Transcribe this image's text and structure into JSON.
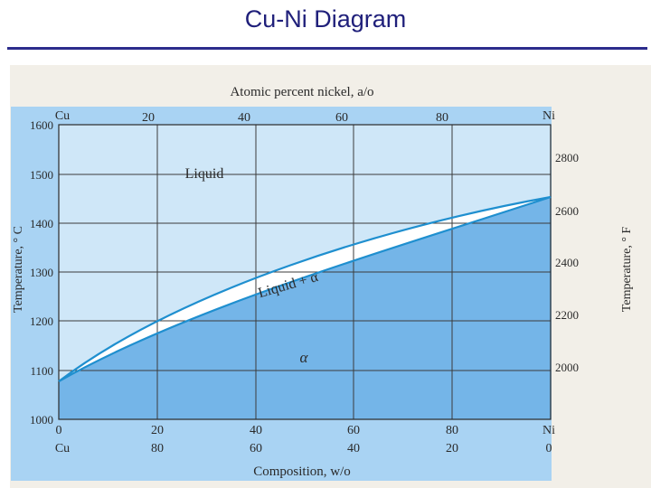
{
  "slide": {
    "title": "Cu-Ni Diagram"
  },
  "colors": {
    "title": "#1f1f7a",
    "accent_rule": "#2c2c8c",
    "liquid_region": "#cfe7f8",
    "alpha_region": "#74b5e8",
    "two_phase_region": "#ffffff",
    "outer_band": "#a9d3f3",
    "grid": "#3b3b3b",
    "boundary": "#1f8fcf"
  },
  "diagram": {
    "top_axis_title": "Atomic percent nickel, a/o",
    "top_left_label": "Cu",
    "top_right_label": "Ni",
    "top_ticks": [
      "20",
      "40",
      "60",
      "80"
    ],
    "left_axis_title": "Temperature, ° C",
    "left_ticks": [
      "1600",
      "1500",
      "1400",
      "1300",
      "1200",
      "1100",
      "1000"
    ],
    "right_axis_title": "Temperature, ° F",
    "right_ticks": [
      "2800",
      "2600",
      "2400",
      "2200",
      "2000"
    ],
    "bottom_axis_title": "Composition, w/o",
    "bottom_ticks_row1": [
      "0",
      "20",
      "40",
      "60",
      "80",
      "Ni"
    ],
    "bottom_ticks_row2": [
      "Cu",
      "80",
      "60",
      "40",
      "20",
      "0"
    ],
    "region_liquid": "Liquid",
    "region_two_phase": "Liquid + α",
    "region_alpha": "α"
  }
}
